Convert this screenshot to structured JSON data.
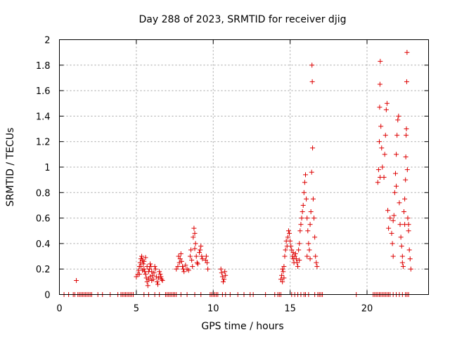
{
  "chart_data": {
    "type": "scatter",
    "title": "Day 288 of 2023, SRMTID for receiver djig",
    "xlabel": "GPS time / hours",
    "ylabel": "SRMTID / TECUs",
    "xlim": [
      0,
      24
    ],
    "ylim": [
      0,
      2
    ],
    "x_ticks": [
      0,
      5,
      10,
      15,
      20
    ],
    "x_tick_labels": [
      "0",
      "5",
      "10",
      "15",
      "20"
    ],
    "y_ticks": [
      0,
      0.2,
      0.4,
      0.6,
      0.8,
      1,
      1.2,
      1.4,
      1.6,
      1.8,
      2
    ],
    "y_tick_labels": [
      "0",
      "0.2",
      "0.4",
      "0.6",
      "0.8",
      "1",
      "1.2",
      "1.4",
      "1.6",
      "1.8",
      "2"
    ],
    "grid": true,
    "marker": "+",
    "marker_color": "#dd0000",
    "series": [
      {
        "name": "SRMTID",
        "points": [
          [
            1.1,
            0.11
          ],
          [
            5.0,
            0.14
          ],
          [
            5.1,
            0.16
          ],
          [
            5.15,
            0.19
          ],
          [
            5.2,
            0.22
          ],
          [
            5.25,
            0.25
          ],
          [
            5.3,
            0.28
          ],
          [
            5.35,
            0.3
          ],
          [
            5.4,
            0.27
          ],
          [
            5.45,
            0.24
          ],
          [
            5.5,
            0.2
          ],
          [
            5.55,
            0.18
          ],
          [
            5.6,
            0.16
          ],
          [
            5.65,
            0.13
          ],
          [
            5.7,
            0.1
          ],
          [
            5.75,
            0.07
          ],
          [
            5.8,
            0.12
          ],
          [
            5.85,
            0.2
          ],
          [
            5.9,
            0.24
          ],
          [
            5.95,
            0.22
          ],
          [
            6.0,
            0.18
          ],
          [
            6.05,
            0.15
          ],
          [
            6.1,
            0.12
          ],
          [
            6.15,
            0.17
          ],
          [
            6.2,
            0.22
          ],
          [
            6.25,
            0.2
          ],
          [
            6.3,
            0.14
          ],
          [
            6.35,
            0.1
          ],
          [
            6.4,
            0.08
          ],
          [
            6.45,
            0.13
          ],
          [
            6.5,
            0.18
          ],
          [
            6.55,
            0.16
          ],
          [
            6.6,
            0.14
          ],
          [
            6.65,
            0.12
          ],
          [
            6.7,
            0.11
          ],
          [
            5.3,
            0.22
          ],
          [
            5.5,
            0.26
          ],
          [
            5.6,
            0.29
          ],
          [
            5.7,
            0.22
          ],
          [
            5.8,
            0.18
          ],
          [
            5.9,
            0.14
          ],
          [
            6.0,
            0.11
          ],
          [
            5.4,
            0.19
          ],
          [
            5.2,
            0.16
          ],
          [
            7.6,
            0.2
          ],
          [
            7.7,
            0.22
          ],
          [
            7.8,
            0.25
          ],
          [
            7.85,
            0.28
          ],
          [
            7.9,
            0.32
          ],
          [
            7.95,
            0.26
          ],
          [
            8.0,
            0.22
          ],
          [
            8.05,
            0.2
          ],
          [
            8.1,
            0.18
          ],
          [
            8.2,
            0.23
          ],
          [
            8.3,
            0.2
          ],
          [
            8.4,
            0.19
          ],
          [
            8.5,
            0.3
          ],
          [
            8.55,
            0.35
          ],
          [
            8.6,
            0.27
          ],
          [
            8.7,
            0.45
          ],
          [
            8.75,
            0.52
          ],
          [
            8.8,
            0.48
          ],
          [
            8.85,
            0.4
          ],
          [
            8.9,
            0.3
          ],
          [
            8.95,
            0.25
          ],
          [
            9.0,
            0.24
          ],
          [
            9.1,
            0.33
          ],
          [
            9.15,
            0.35
          ],
          [
            9.2,
            0.38
          ],
          [
            9.25,
            0.3
          ],
          [
            9.3,
            0.28
          ],
          [
            9.5,
            0.27
          ],
          [
            9.55,
            0.3
          ],
          [
            9.6,
            0.25
          ],
          [
            9.65,
            0.2
          ],
          [
            8.65,
            0.22
          ],
          [
            8.8,
            0.36
          ],
          [
            7.75,
            0.3
          ],
          [
            10.5,
            0.2
          ],
          [
            10.55,
            0.17
          ],
          [
            10.6,
            0.14
          ],
          [
            10.65,
            0.1
          ],
          [
            10.7,
            0.12
          ],
          [
            10.75,
            0.18
          ],
          [
            10.8,
            0.15
          ],
          [
            14.4,
            0.12
          ],
          [
            14.45,
            0.15
          ],
          [
            14.5,
            0.2
          ],
          [
            14.55,
            0.18
          ],
          [
            14.6,
            0.22
          ],
          [
            14.65,
            0.3
          ],
          [
            14.7,
            0.35
          ],
          [
            14.75,
            0.42
          ],
          [
            14.8,
            0.38
          ],
          [
            14.85,
            0.45
          ],
          [
            14.9,
            0.5
          ],
          [
            14.95,
            0.48
          ],
          [
            15.0,
            0.42
          ],
          [
            15.05,
            0.38
          ],
          [
            15.1,
            0.35
          ],
          [
            15.15,
            0.3
          ],
          [
            15.2,
            0.28
          ],
          [
            15.25,
            0.25
          ],
          [
            15.3,
            0.3
          ],
          [
            15.35,
            0.32
          ],
          [
            15.4,
            0.28
          ],
          [
            15.45,
            0.25
          ],
          [
            15.5,
            0.22
          ],
          [
            15.55,
            0.35
          ],
          [
            15.6,
            0.4
          ],
          [
            15.65,
            0.5
          ],
          [
            15.7,
            0.55
          ],
          [
            15.75,
            0.6
          ],
          [
            15.8,
            0.65
          ],
          [
            15.85,
            0.7
          ],
          [
            15.9,
            0.8
          ],
          [
            15.95,
            0.88
          ],
          [
            16.0,
            0.94
          ],
          [
            16.05,
            0.75
          ],
          [
            16.1,
            0.6
          ],
          [
            16.15,
            0.5
          ],
          [
            16.2,
            0.4
          ],
          [
            16.25,
            0.35
          ],
          [
            16.3,
            0.55
          ],
          [
            16.35,
            0.65
          ],
          [
            16.4,
            0.96
          ],
          [
            16.42,
            1.8
          ],
          [
            16.44,
            1.67
          ],
          [
            16.46,
            1.15
          ],
          [
            16.5,
            0.75
          ],
          [
            16.55,
            0.6
          ],
          [
            16.6,
            0.45
          ],
          [
            16.65,
            0.3
          ],
          [
            16.7,
            0.25
          ],
          [
            16.75,
            0.22
          ],
          [
            14.5,
            0.1
          ],
          [
            14.6,
            0.13
          ],
          [
            15.2,
            0.33
          ],
          [
            15.6,
            0.27
          ],
          [
            16.1,
            0.3
          ],
          [
            16.3,
            0.28
          ],
          [
            20.7,
            0.88
          ],
          [
            20.75,
            0.98
          ],
          [
            20.8,
            1.2
          ],
          [
            20.82,
            1.47
          ],
          [
            20.84,
            1.65
          ],
          [
            20.86,
            1.83
          ],
          [
            20.9,
            1.32
          ],
          [
            20.95,
            1.15
          ],
          [
            21.0,
            1.0
          ],
          [
            21.1,
            0.92
          ],
          [
            21.15,
            1.1
          ],
          [
            21.2,
            1.25
          ],
          [
            21.25,
            1.45
          ],
          [
            21.3,
            1.5
          ],
          [
            21.35,
            0.66
          ],
          [
            21.4,
            0.52
          ],
          [
            21.5,
            0.6
          ],
          [
            21.6,
            0.48
          ],
          [
            21.65,
            0.4
          ],
          [
            21.7,
            0.58
          ],
          [
            21.75,
            0.62
          ],
          [
            21.8,
            0.8
          ],
          [
            21.85,
            0.95
          ],
          [
            21.9,
            1.1
          ],
          [
            21.95,
            1.25
          ],
          [
            22.0,
            1.37
          ],
          [
            22.05,
            1.4
          ],
          [
            22.1,
            0.72
          ],
          [
            22.15,
            0.55
          ],
          [
            22.2,
            0.45
          ],
          [
            22.25,
            0.38
          ],
          [
            22.3,
            0.3
          ],
          [
            22.35,
            0.22
          ],
          [
            22.4,
            0.65
          ],
          [
            22.45,
            0.75
          ],
          [
            22.5,
            0.9
          ],
          [
            22.52,
            1.08
          ],
          [
            22.54,
            1.25
          ],
          [
            22.56,
            1.3
          ],
          [
            22.58,
            1.67
          ],
          [
            22.6,
            1.9
          ],
          [
            22.62,
            0.98
          ],
          [
            22.65,
            0.6
          ],
          [
            22.7,
            0.5
          ],
          [
            22.75,
            0.35
          ],
          [
            22.8,
            0.28
          ],
          [
            22.85,
            0.2
          ],
          [
            21.7,
            0.3
          ],
          [
            22.3,
            0.25
          ],
          [
            22.7,
            0.55
          ],
          [
            21.9,
            0.85
          ],
          [
            20.85,
            0.92
          ],
          [
            22.45,
            0.55
          ]
        ],
        "zero_points_x": [
          0.3,
          0.6,
          0.9,
          1.0,
          1.2,
          1.3,
          1.4,
          1.5,
          1.6,
          1.7,
          1.8,
          1.9,
          2.0,
          2.1,
          2.5,
          2.8,
          3.3,
          3.8,
          4.0,
          4.1,
          4.2,
          4.3,
          4.4,
          4.5,
          4.6,
          4.7,
          4.8,
          5.5,
          5.8,
          6.2,
          6.5,
          6.9,
          7.0,
          7.1,
          7.2,
          7.3,
          7.4,
          7.5,
          7.6,
          7.9,
          8.3,
          8.8,
          9.2,
          9.8,
          9.9,
          10.0,
          10.1,
          10.2,
          10.3,
          10.6,
          10.8,
          11.1,
          11.6,
          12.0,
          12.4,
          12.6,
          13.4,
          14.0,
          14.2,
          14.3,
          14.4,
          15.1,
          15.3,
          15.5,
          15.7,
          15.9,
          16.0,
          16.2,
          16.6,
          16.8,
          16.9,
          17.0,
          17.1,
          19.3,
          20.4,
          20.5,
          20.6,
          20.7,
          20.8,
          20.9,
          21.0,
          21.1,
          21.2,
          21.3,
          21.4,
          21.5,
          21.7,
          21.9,
          22.1,
          22.3,
          22.5,
          22.6,
          22.7
        ]
      }
    ]
  }
}
